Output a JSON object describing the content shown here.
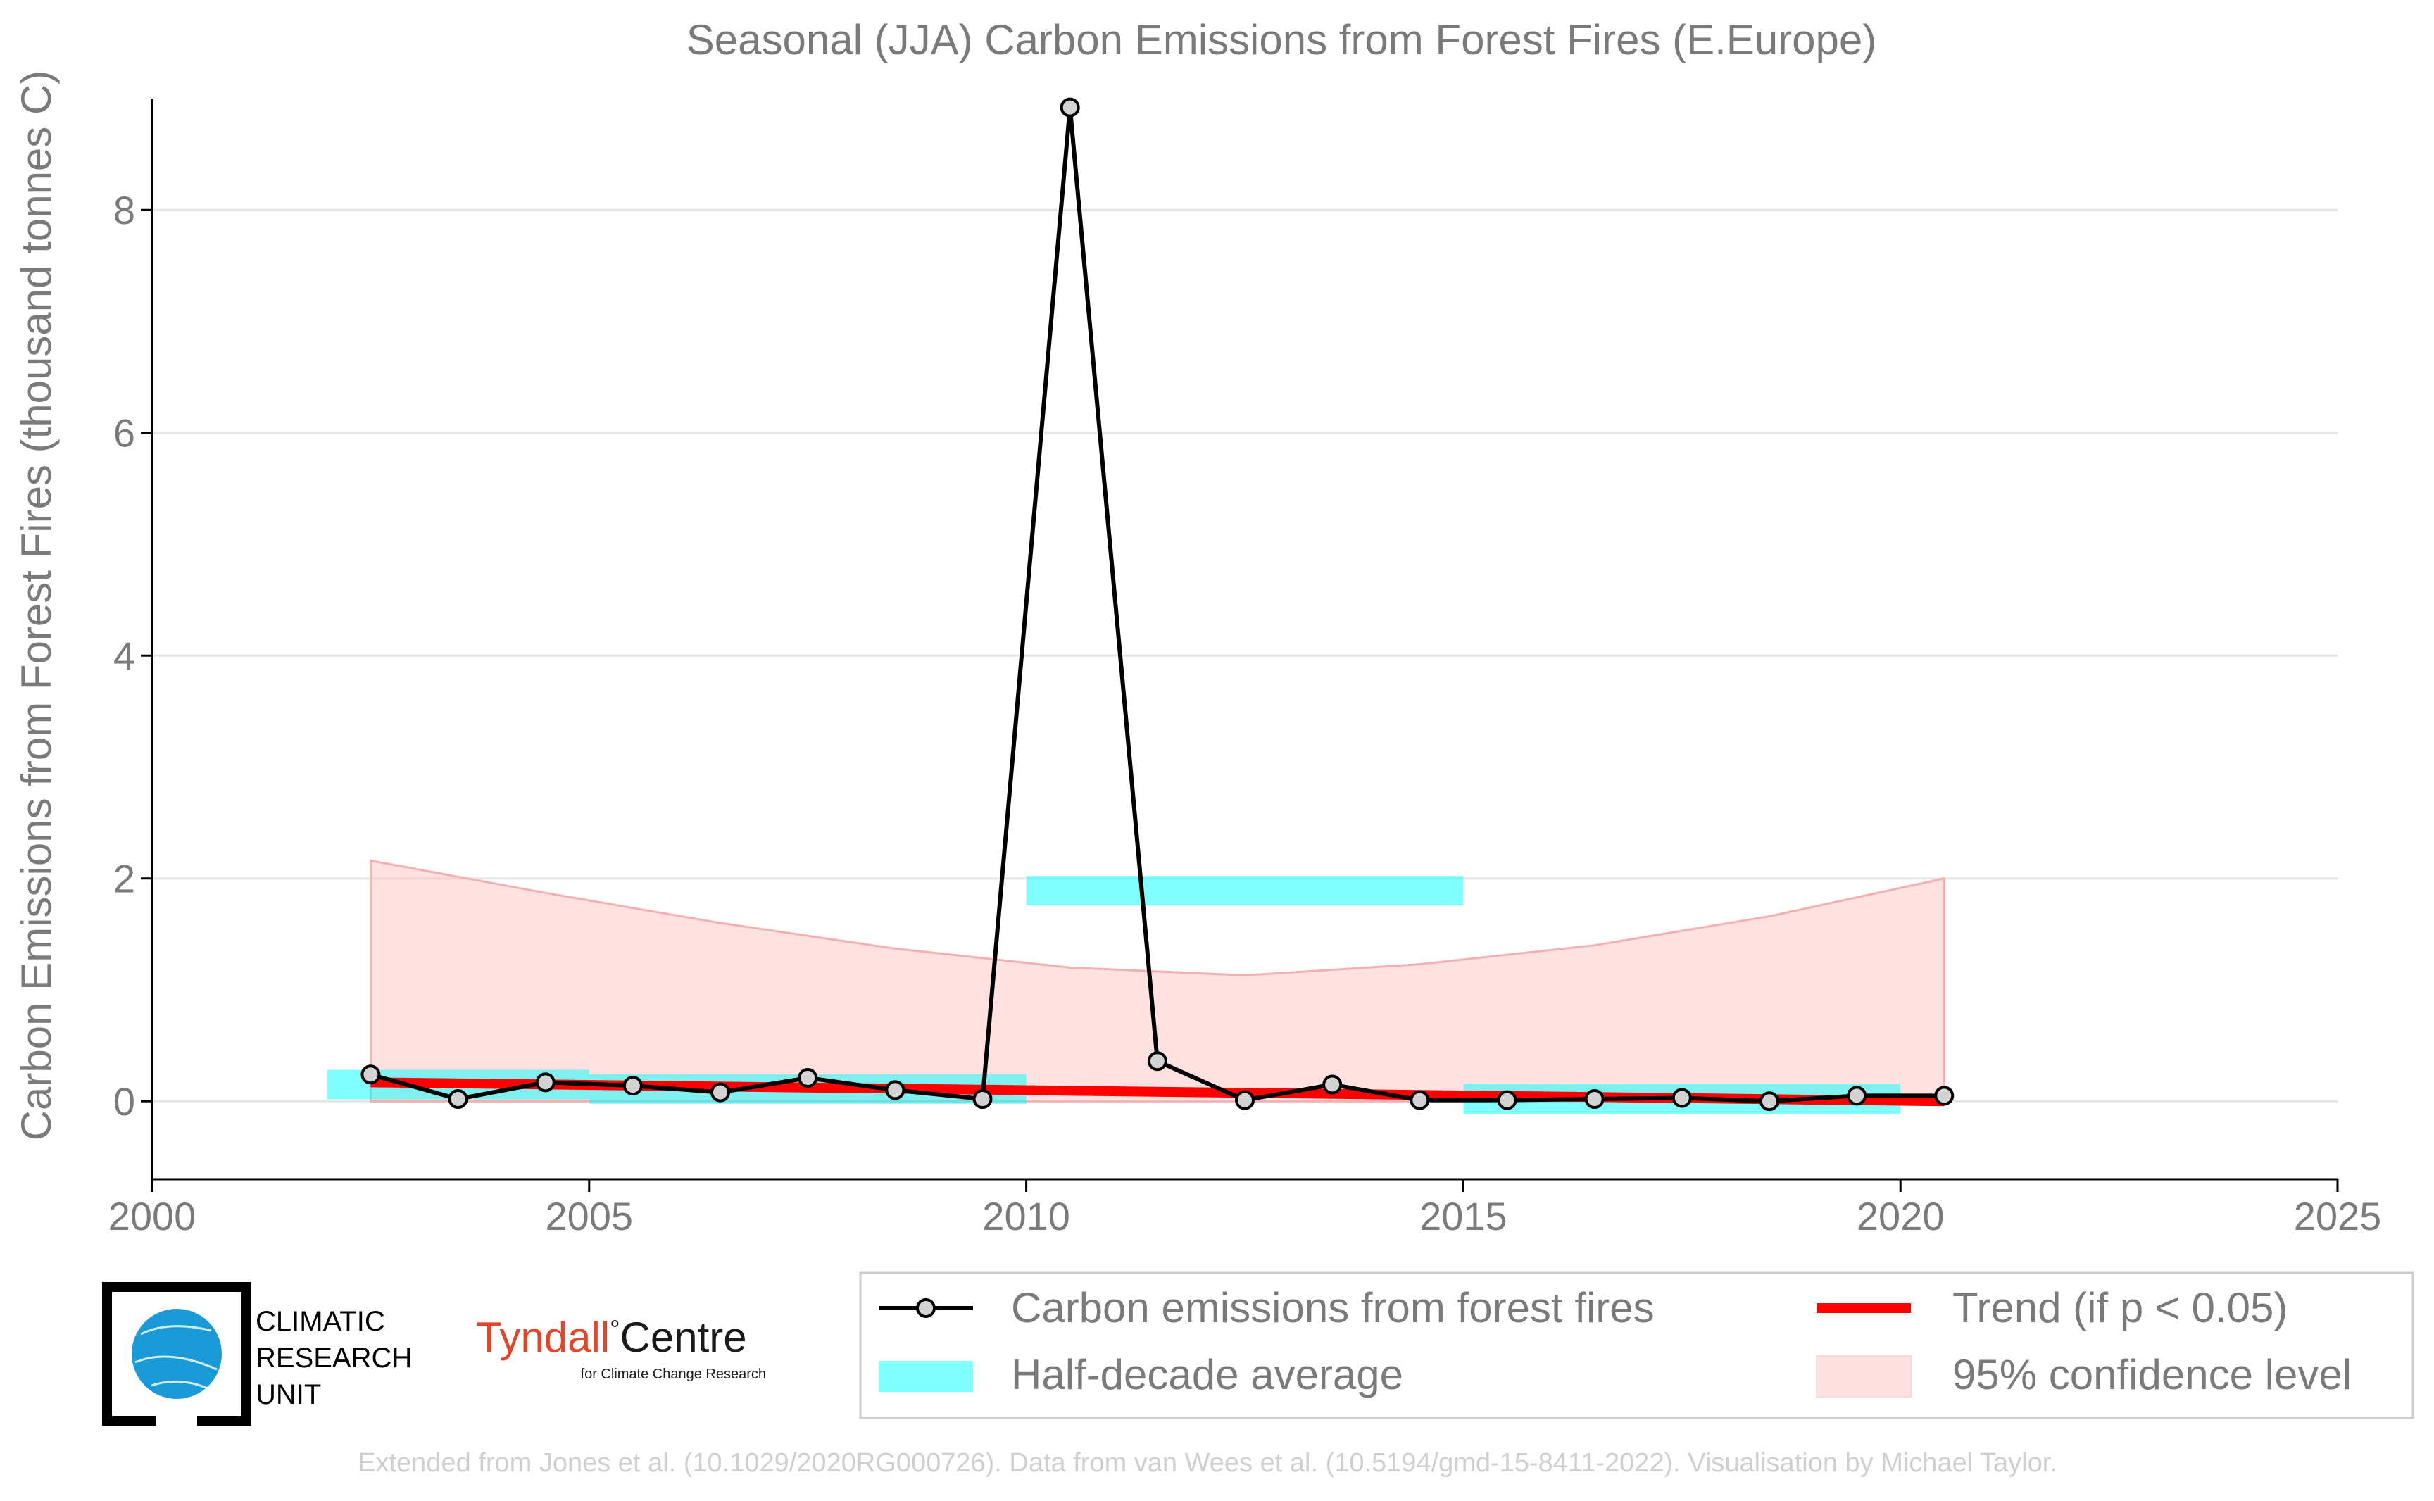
{
  "chart_data": {
    "type": "line",
    "title": "Seasonal (JJA) Carbon Emissions from Forest Fires (E.Europe)",
    "xlabel": "",
    "ylabel": "Carbon Emissions from Forest Fires (thousand tonnes C)",
    "xlim": [
      2000,
      2025
    ],
    "ylim": [
      -0.7,
      9.0
    ],
    "x_ticks": [
      2000,
      2005,
      2010,
      2015,
      2020,
      2025
    ],
    "y_ticks": [
      0,
      2,
      4,
      6,
      8
    ],
    "grid": "horizontal",
    "legend_position": "bottom-right",
    "series": [
      {
        "name": "Carbon emissions from forest fires",
        "kind": "line-markers",
        "color": "#000000",
        "marker_fill": "#d3d3d3",
        "x": [
          2002.5,
          2003.5,
          2004.5,
          2005.5,
          2006.5,
          2007.5,
          2008.5,
          2009.5,
          2010.5,
          2011.5,
          2012.5,
          2013.5,
          2014.5,
          2015.5,
          2016.5,
          2017.5,
          2018.5,
          2019.5,
          2020.5
        ],
        "y": [
          0.24,
          0.02,
          0.17,
          0.14,
          0.08,
          0.21,
          0.1,
          0.02,
          8.92,
          0.36,
          0.01,
          0.15,
          0.01,
          0.01,
          0.02,
          0.03,
          0.0,
          0.05,
          0.05
        ]
      },
      {
        "name": "Half-decade average",
        "kind": "bars",
        "color": "#00ffff",
        "opacity": 0.5,
        "segments": [
          {
            "x0": 2002,
            "x1": 2005,
            "y": 0.15
          },
          {
            "x0": 2005,
            "x1": 2010,
            "y": 0.11
          },
          {
            "x0": 2010,
            "x1": 2015,
            "y": 1.89
          },
          {
            "x0": 2015,
            "x1": 2020,
            "y": 0.02
          }
        ]
      },
      {
        "name": "Trend (if p < 0.05)",
        "kind": "line",
        "color": "#ff0000",
        "x": [
          2002.5,
          2020.5
        ],
        "y": [
          0.17,
          0.0
        ]
      },
      {
        "name": "95% confidence level",
        "kind": "band",
        "color": "#ffb3b3",
        "opacity": 0.4,
        "x": [
          2002.5,
          2004.5,
          2006.5,
          2008.5,
          2010.5,
          2012.5,
          2014.5,
          2016.5,
          2018.5,
          2020.5
        ],
        "upper": [
          2.16,
          1.87,
          1.6,
          1.37,
          1.2,
          1.13,
          1.23,
          1.4,
          1.66,
          2.0
        ],
        "lower": [
          0.0,
          0.0,
          0.0,
          0.0,
          0.0,
          0.0,
          0.0,
          0.0,
          0.0,
          0.0
        ]
      }
    ]
  },
  "logos": {
    "cru": [
      "CLIMATIC",
      "RESEARCH",
      "UNIT"
    ],
    "tyndall_part1": "Tyndall",
    "tyndall_degree": "°",
    "tyndall_part2": "Centre",
    "tyndall_sub": "for Climate Change Research"
  },
  "footer": "Extended from Jones et al. (10.1029/2020RG000726). Data from van Wees et al. (10.5194/gmd-15-8411-2022). Visualisation by Michael Taylor.",
  "colors": {
    "axis": "#000000",
    "grid": "#e6e6e6",
    "text": "#7a7a7a",
    "legend_border": "#cccccc"
  }
}
